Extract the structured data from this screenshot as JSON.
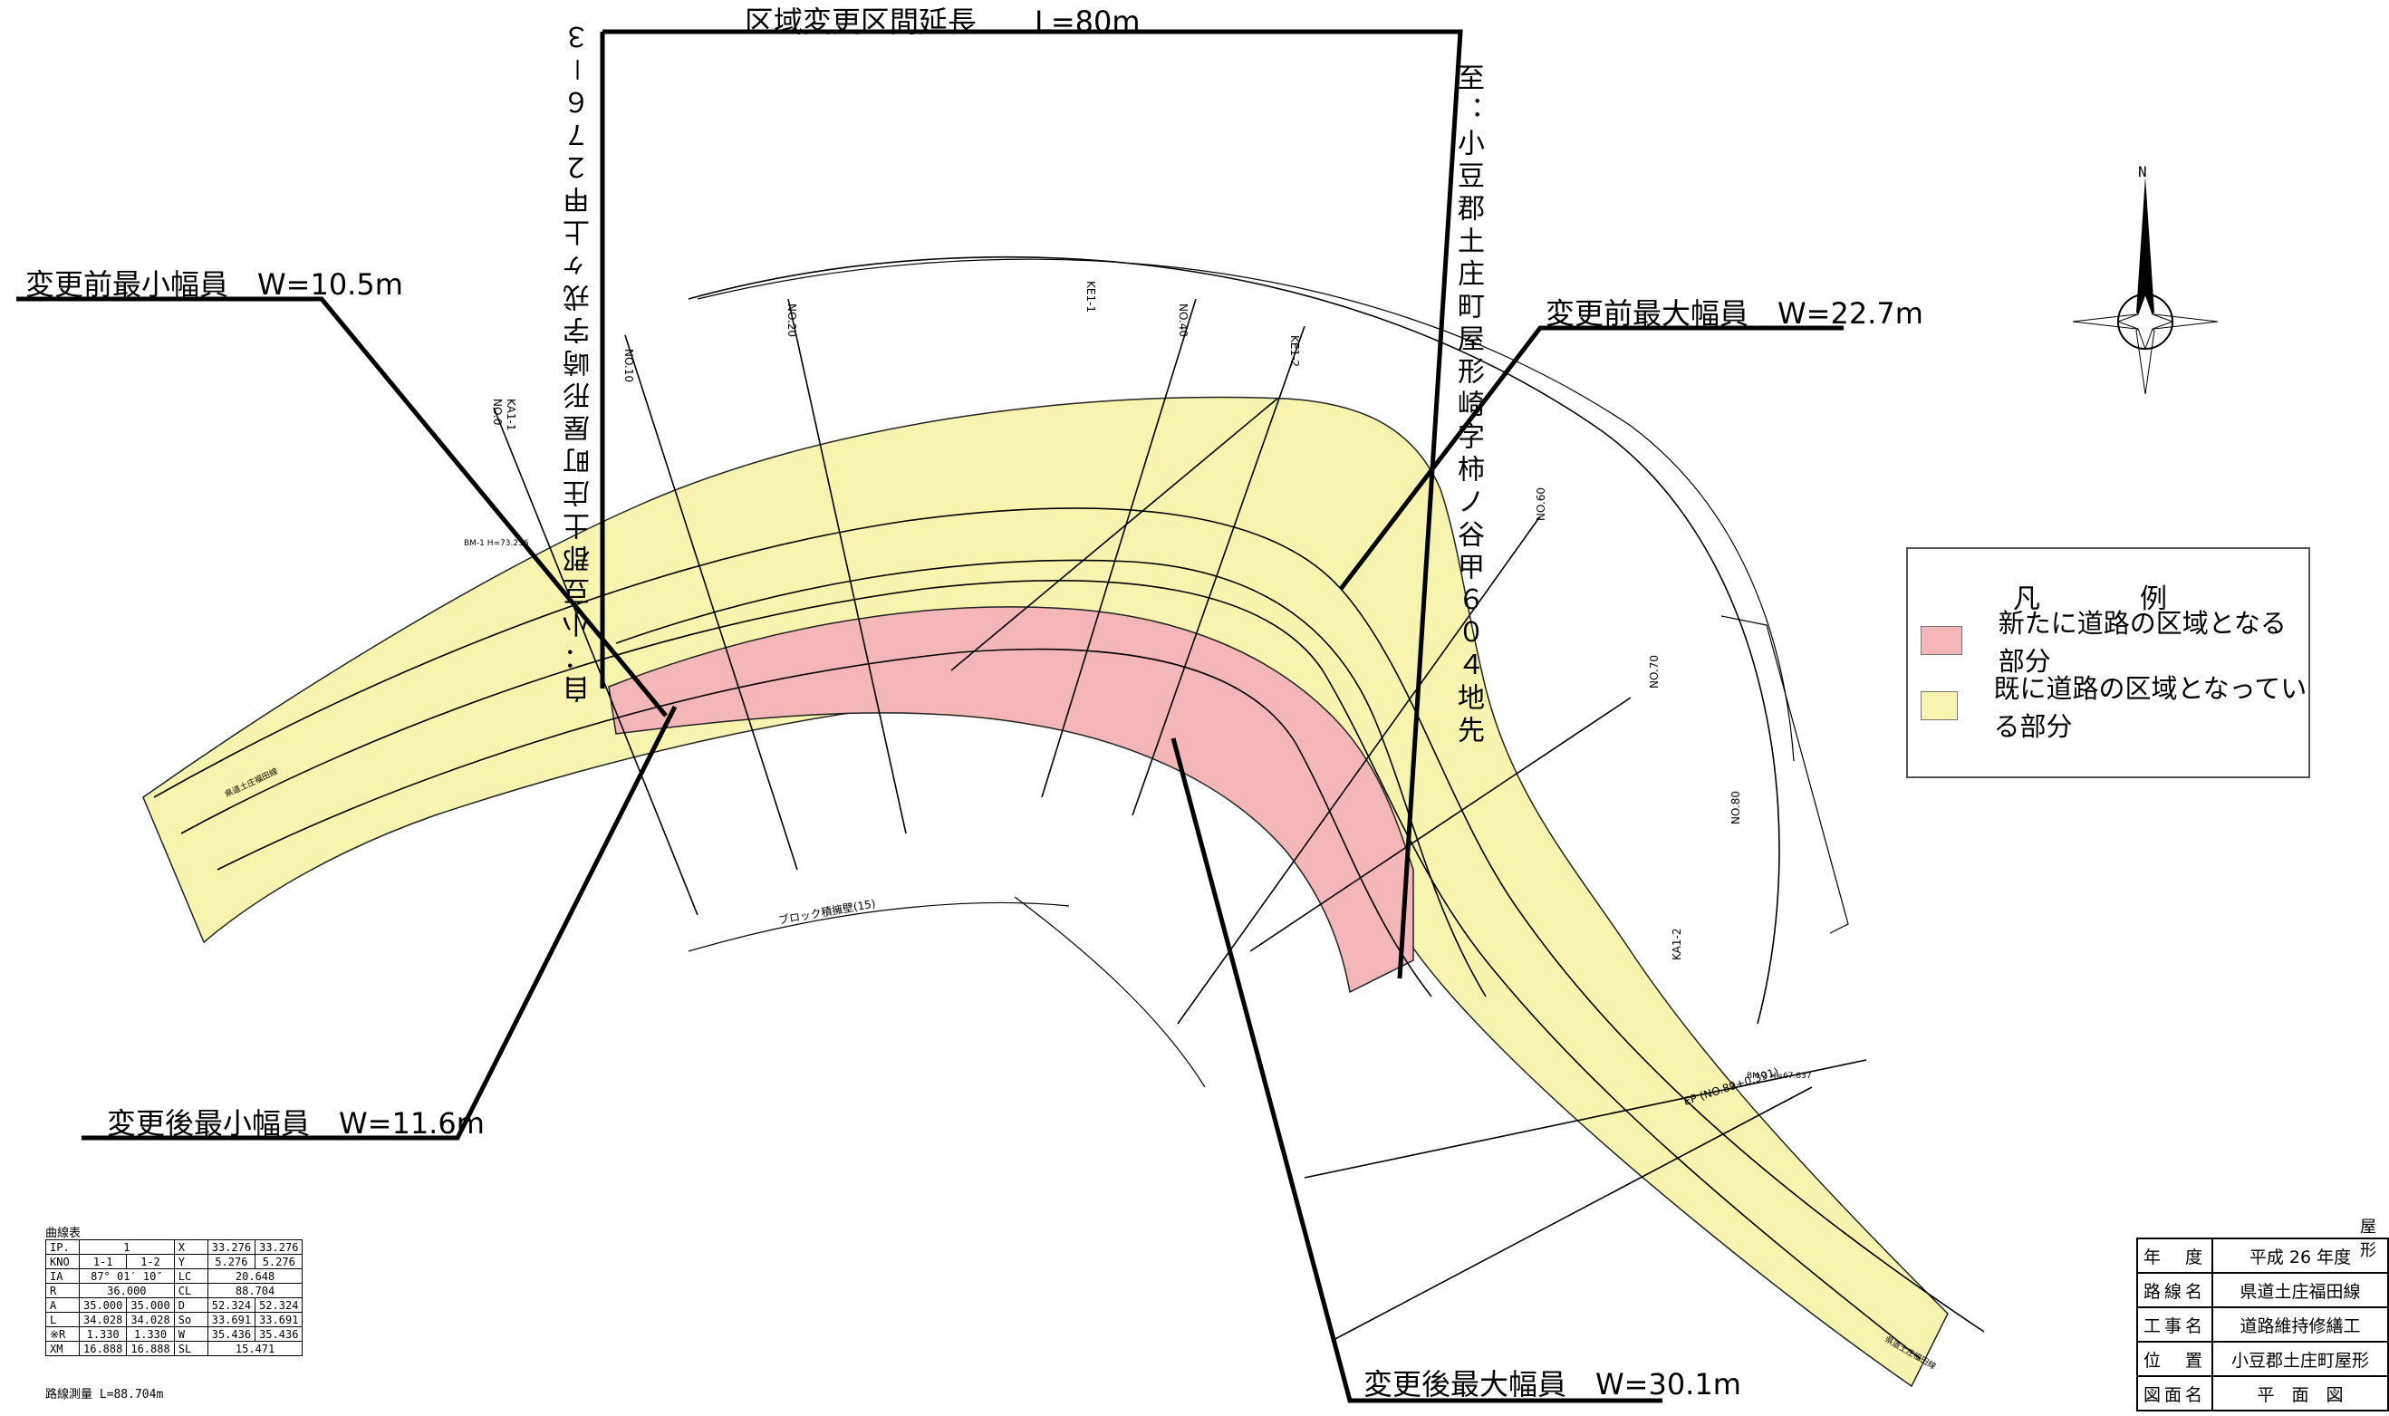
{
  "annotations": {
    "section_length": "区域変更区間延長　　L=80m",
    "before_min_width": "変更前最小幅員　W=10.5m",
    "before_max_width": "変更前最大幅員　W=22.7m",
    "after_min_width": "変更後最小幅員　W=11.6m",
    "after_max_width": "変更後最大幅員　W=30.1m",
    "from_location": "自：小豆郡土庄町屋形崎字戎ヶ上甲２７６－３",
    "to_location": "至：小豆郡土庄町屋形崎字柿ノ谷甲６０４地先"
  },
  "compass": {
    "label": "N",
    "icon": "compass-rose-icon"
  },
  "legend": {
    "title": "凡　例",
    "items": [
      {
        "label": "新たに道路の区域となる部分",
        "color": "#f4b6b9"
      },
      {
        "label": "既に道路の区域となっている部分",
        "color": "#f7f4b0"
      }
    ]
  },
  "curve_table": {
    "title": "曲線表",
    "rows": [
      [
        "IP.",
        "1",
        "",
        "X",
        "33.276",
        "33.276"
      ],
      [
        "KNO",
        "1-1",
        "1-2",
        "Y",
        "5.276",
        "5.276"
      ],
      [
        "IA",
        "87° 01′ 10″",
        "",
        "LC",
        "20.648",
        ""
      ],
      [
        "R",
        "36.000",
        "",
        "CL",
        "88.704",
        ""
      ],
      [
        "A",
        "35.000",
        "35.000",
        "D",
        "52.324",
        "52.324"
      ],
      [
        "L",
        "34.028",
        "34.028",
        "So",
        "33.691",
        "33.691"
      ],
      [
        "※R",
        "1.330",
        "1.330",
        "W",
        "35.436",
        "35.436"
      ],
      [
        "XM",
        "16.888",
        "16.888",
        "SL",
        "15.471",
        ""
      ]
    ],
    "survey_note": "路線測量 L=88.704m"
  },
  "title_block": {
    "header": "屋形",
    "rows": [
      {
        "key": "年　度",
        "value": "平成 26 年度"
      },
      {
        "key": "路線名",
        "value": "県道土庄福田線"
      },
      {
        "key": "工事名",
        "value": "道路維持修繕工"
      },
      {
        "key": "位　置",
        "value": "小豆郡土庄町屋形"
      },
      {
        "key": "図面名",
        "value": "平　面　図"
      }
    ]
  },
  "drawing_labels": {
    "no0": "NO.0",
    "no10": "NO.10",
    "no20": "NO.20",
    "no40": "NO.40",
    "no60": "NO.60",
    "no70": "NO.70",
    "no80": "NO.80",
    "ka1_1": "KA1-1",
    "ka1_2": "KA1-2",
    "ke1_1": "KE1-1",
    "ke1_2": "KE1-2",
    "bm1": "BM-1 H=73.236",
    "bm2": "BM-2 H=67.837",
    "ep": "EP (NO.89+0.391)",
    "road_name_1": "県道土庄福田線",
    "road_name_2": "県道土庄福田線",
    "block_wall": "ブロック積擁壁(15)"
  },
  "colors": {
    "new_area": "#f4b6b9",
    "existing_area": "#f7f4b0",
    "line": "#000000"
  }
}
